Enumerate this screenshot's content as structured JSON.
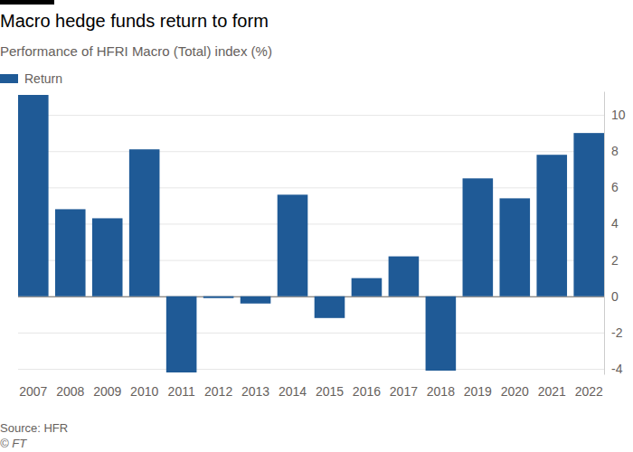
{
  "chart_data": {
    "type": "bar",
    "title": "Macro hedge funds return to form",
    "subtitle": "Performance of HFRI Macro (Total) index (%)",
    "source": "Source: HFR",
    "credit": "© FT",
    "categories": [
      "2007",
      "2008",
      "2009",
      "2010",
      "2011",
      "2012",
      "2013",
      "2014",
      "2015",
      "2016",
      "2017",
      "2018",
      "2019",
      "2020",
      "2021",
      "2022"
    ],
    "series": [
      {
        "name": "Return",
        "color": "#1f5a96",
        "values": [
          11.1,
          4.8,
          4.3,
          8.1,
          -4.2,
          -0.1,
          -0.4,
          5.6,
          -1.2,
          1.0,
          2.2,
          -4.1,
          6.5,
          5.4,
          7.8,
          9.0
        ]
      }
    ],
    "ylim": [
      -4.3,
      11.3
    ],
    "yticks": [
      -4,
      -2,
      0,
      2,
      4,
      6,
      8,
      10
    ],
    "grid": true,
    "legend": "top-left"
  }
}
